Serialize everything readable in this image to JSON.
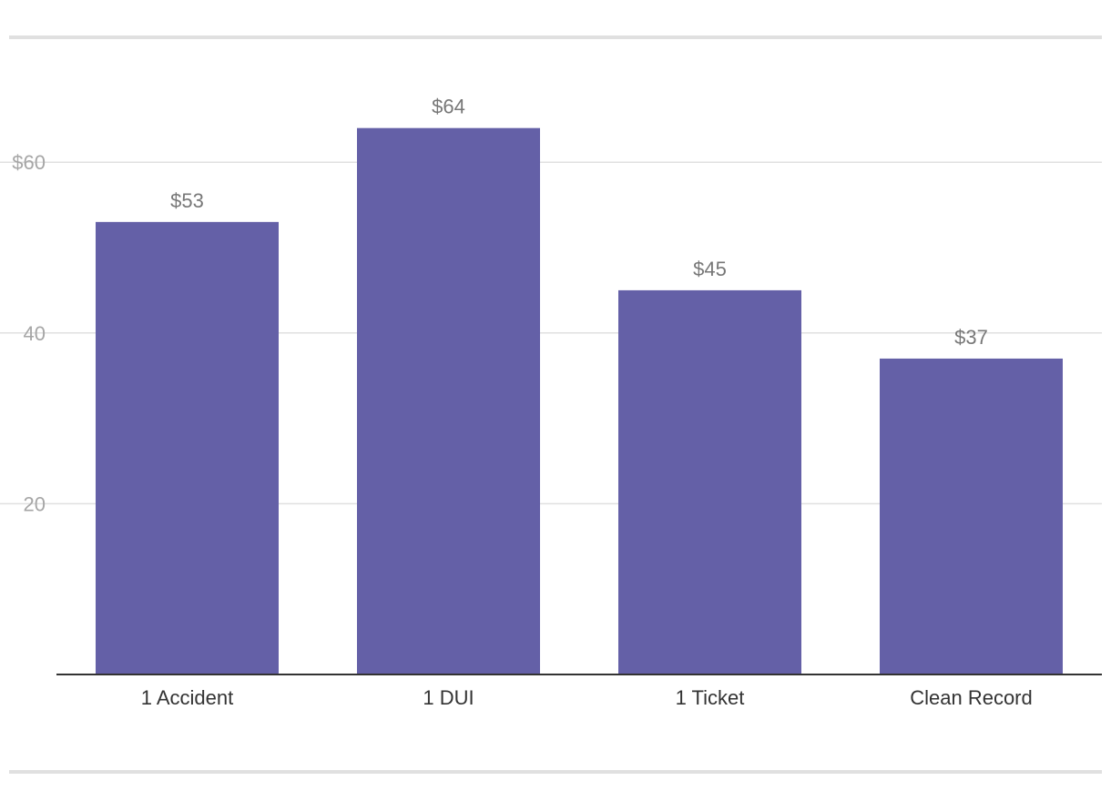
{
  "chart_data": {
    "type": "bar",
    "categories": [
      "1 Accident",
      "1 DUI",
      "1 Ticket",
      "Clean Record"
    ],
    "values": [
      53,
      64,
      45,
      37
    ],
    "value_labels": [
      "$53",
      "$64",
      "$45",
      "$37"
    ],
    "y_ticks": [
      {
        "value": 20,
        "label": "20"
      },
      {
        "value": 40,
        "label": "40"
      },
      {
        "value": 60,
        "label": "$60"
      }
    ],
    "ylim": [
      0,
      64
    ],
    "grid": true,
    "bar_color": "#6460a7",
    "title": "",
    "xlabel": "",
    "ylabel": ""
  }
}
